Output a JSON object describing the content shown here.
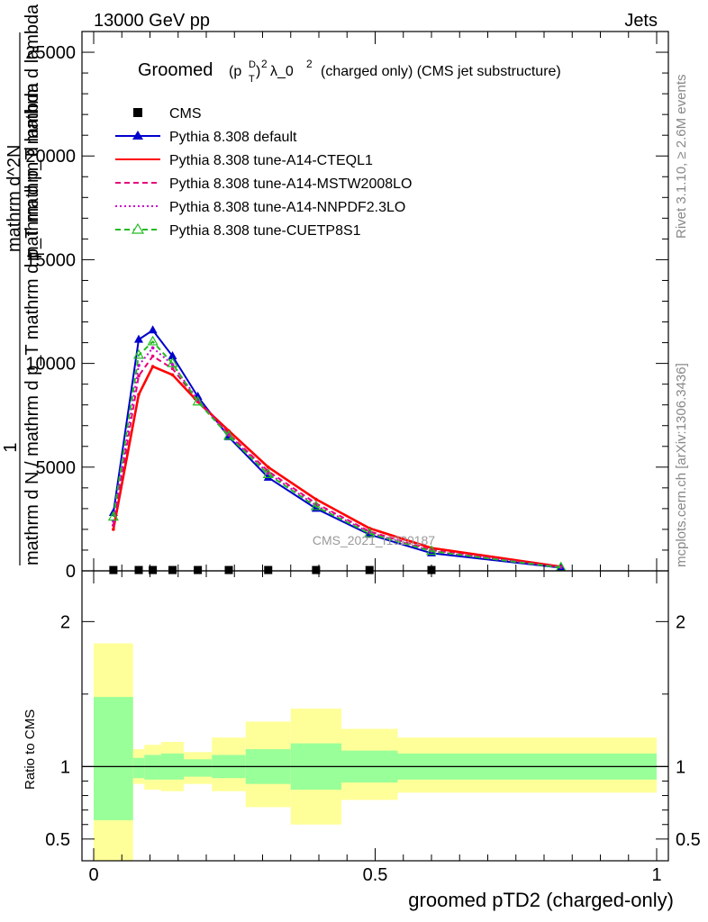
{
  "header": {
    "left": "13000 GeV pp",
    "right": "Jets"
  },
  "side_labels": {
    "rivet": "Rivet 3.1.10, ≥ 2.6M events",
    "mcplots": "mcplots.cern.ch [arXiv:1306.3436]"
  },
  "title": {
    "main": "Groomed",
    "p": "(p",
    "p_sup": "D",
    "p_sub": "T",
    "p_close": ")",
    "exp": "2",
    "lambda": "λ_0",
    "lambda_exp": "2",
    "rest": "(charged only) (CMS jet substructure)"
  },
  "watermark": "CMS_2021_I1920187",
  "legend": [
    {
      "label": "CMS",
      "color": "#000000",
      "marker": "square",
      "dash": "solid"
    },
    {
      "label": "Pythia 8.308 default",
      "color": "#0000cc",
      "marker": "triangle",
      "dash": "solid"
    },
    {
      "label": "Pythia 8.308 tune-A14-CTEQL1",
      "color": "#ff0000",
      "marker": "none",
      "dash": "solid"
    },
    {
      "label": "Pythia 8.308 tune-A14-MSTW2008LO",
      "color": "#e8007a",
      "marker": "none",
      "dash": "dashed"
    },
    {
      "label": "Pythia 8.308 tune-A14-NNPDF2.3LO",
      "color": "#cc00cc",
      "marker": "none",
      "dash": "dotted"
    },
    {
      "label": "Pythia 8.308 tune-CUETP8S1",
      "color": "#22bb22",
      "marker": "open-triangle",
      "dash": "dashed"
    }
  ],
  "ylabel_main": {
    "numerator": "1",
    "denominator": "mathrm d N / mathrm d p_T mathrm d p_T mathrm d lambda",
    "numerator2": "mathrm d^2N",
    "denominator2": "mathrm d p_T mathrm d lambda"
  },
  "ylabel_ratio": "Ratio to CMS",
  "xlabel": "groomed pTD2 (charged-only)",
  "chart_data": {
    "type": "line",
    "main": {
      "xlim": [
        0,
        1
      ],
      "ylim": [
        0,
        26000
      ],
      "yticks": [
        0,
        5000,
        10000,
        15000,
        20000,
        25000
      ],
      "yticklabels": [
        "0",
        "5000",
        "10000",
        "15000",
        "20000",
        "25000"
      ],
      "series": [
        {
          "name": "CMS",
          "x": [
            0.035,
            0.08,
            0.105,
            0.14,
            0.185,
            0.24,
            0.31,
            0.395,
            0.49,
            0.6
          ],
          "y": [
            40,
            40,
            40,
            40,
            40,
            40,
            40,
            40,
            40,
            40
          ]
        },
        {
          "name": "Pythia 8.308 default",
          "x": [
            0.035,
            0.08,
            0.105,
            0.14,
            0.185,
            0.24,
            0.31,
            0.395,
            0.49,
            0.6,
            0.83
          ],
          "y": [
            2800,
            11150,
            11600,
            10350,
            8400,
            6450,
            4500,
            3000,
            1750,
            850,
            150
          ]
        },
        {
          "name": "Pythia 8.308 tune-A14-CTEQL1",
          "x": [
            0.035,
            0.08,
            0.105,
            0.14,
            0.185,
            0.24,
            0.31,
            0.395,
            0.49,
            0.6,
            0.83
          ],
          "y": [
            2000,
            8500,
            9850,
            9450,
            8150,
            6750,
            5000,
            3450,
            2050,
            1100,
            200
          ]
        },
        {
          "name": "Pythia 8.308 tune-A14-MSTW2008LO",
          "x": [
            0.035,
            0.08,
            0.105,
            0.14,
            0.185,
            0.24,
            0.31,
            0.395,
            0.49,
            0.6,
            0.83
          ],
          "y": [
            2200,
            9400,
            10350,
            9750,
            8200,
            6600,
            4800,
            3250,
            1900,
            1000,
            180
          ]
        },
        {
          "name": "Pythia 8.308 tune-A14-NNPDF2.3LO",
          "x": [
            0.035,
            0.08,
            0.105,
            0.14,
            0.185,
            0.24,
            0.31,
            0.395,
            0.49,
            0.6,
            0.83
          ],
          "y": [
            2400,
            9900,
            10750,
            9950,
            8250,
            6550,
            4700,
            3150,
            1850,
            950,
            170
          ]
        },
        {
          "name": "Pythia 8.308 tune-CUETP8S1",
          "x": [
            0.035,
            0.08,
            0.105,
            0.14,
            0.185,
            0.24,
            0.31,
            0.395,
            0.49,
            0.6,
            0.83
          ],
          "y": [
            2600,
            10400,
            11050,
            10000,
            8150,
            6500,
            4650,
            3100,
            1800,
            950,
            160
          ]
        }
      ]
    },
    "ratio": {
      "xlim": [
        0,
        1
      ],
      "ylim": [
        0.35,
        2.35
      ],
      "yticks": [
        0.5,
        1,
        2
      ],
      "yticklabels": [
        "0.5",
        "1",
        "2"
      ],
      "reference": 1,
      "bins": [
        {
          "x": [
            0.0,
            0.07
          ],
          "stat": [
            0.63,
            1.48
          ],
          "total": [
            0.35,
            1.85
          ]
        },
        {
          "x": [
            0.07,
            0.09
          ],
          "stat": [
            0.92,
            1.06
          ],
          "total": [
            0.88,
            1.12
          ]
        },
        {
          "x": [
            0.09,
            0.12
          ],
          "stat": [
            0.91,
            1.08
          ],
          "total": [
            0.84,
            1.15
          ]
        },
        {
          "x": [
            0.12,
            0.16
          ],
          "stat": [
            0.91,
            1.09
          ],
          "total": [
            0.83,
            1.17
          ]
        },
        {
          "x": [
            0.16,
            0.21
          ],
          "stat": [
            0.93,
            1.05
          ],
          "total": [
            0.88,
            1.1
          ]
        },
        {
          "x": [
            0.21,
            0.27
          ],
          "stat": [
            0.92,
            1.08
          ],
          "total": [
            0.83,
            1.2
          ]
        },
        {
          "x": [
            0.27,
            0.35
          ],
          "stat": [
            0.88,
            1.12
          ],
          "total": [
            0.72,
            1.31
          ]
        },
        {
          "x": [
            0.35,
            0.44
          ],
          "stat": [
            0.84,
            1.16
          ],
          "total": [
            0.6,
            1.4
          ]
        },
        {
          "x": [
            0.44,
            0.54
          ],
          "stat": [
            0.89,
            1.11
          ],
          "total": [
            0.77,
            1.26
          ]
        },
        {
          "x": [
            0.54,
            0.66
          ],
          "stat": [
            0.91,
            1.09
          ],
          "total": [
            0.82,
            1.2
          ]
        },
        {
          "x": [
            0.66,
            1.0
          ],
          "stat": [
            0.91,
            1.09
          ],
          "total": [
            0.82,
            1.2
          ]
        }
      ]
    },
    "xticks": [
      0,
      0.5,
      1
    ],
    "xticklabels": [
      "0",
      "0.5",
      "1"
    ]
  },
  "colors": {
    "stat_band": "#99ff99",
    "total_band": "#ffff99",
    "watermark": "#999999",
    "side_text": "#888888"
  }
}
